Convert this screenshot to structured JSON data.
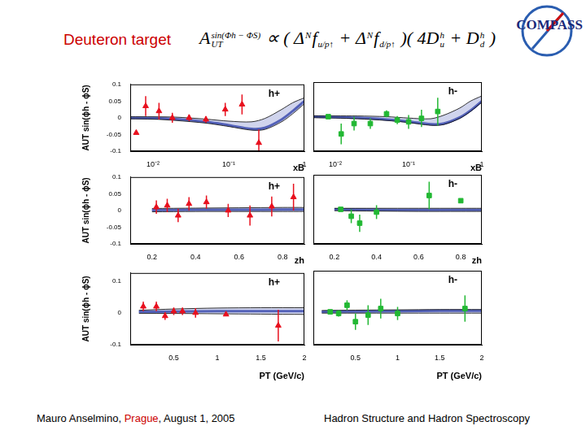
{
  "slide": {
    "title": "Deuteron target",
    "formula": [
      {
        "text": "A",
        "sup": "sin(Φh − ΦS)",
        "sub": "UT"
      },
      {
        "text": " ∝ ( Δ",
        "sup": "N"
      },
      {
        "text": "f",
        "sub": "u/p↑"
      },
      {
        "text": " + Δ",
        "sup": "N"
      },
      {
        "text": "f",
        "sub": "d/p↑"
      },
      {
        "text": " )( 4D",
        "sup": "h",
        "sub": "u"
      },
      {
        "text": " + D",
        "sup": "h",
        "sub": "d"
      },
      {
        "text": " )"
      }
    ],
    "logo": "COMPASS",
    "footer_left": [
      {
        "text": "Mauro Anselmino, "
      },
      {
        "text": "Prague",
        "color": "#cc0000"
      },
      {
        "text": ", August 1, 2005"
      }
    ],
    "footer_right": "Hadron Structure and Hadron Spectroscopy"
  },
  "chart_data": [
    {
      "type": "scatter",
      "title": "h+",
      "x_label": "xB",
      "y_label": "AUT sin(ϕh - ϕS)",
      "log": "x",
      "grid": false,
      "xlim": [
        0.005,
        1
      ],
      "xticks": [
        {
          "value": 0.01,
          "label": "10⁻²"
        },
        {
          "value": 0.1,
          "label": "10⁻¹"
        },
        1
      ],
      "ylim": [
        -0.1,
        0.1
      ],
      "yticks": [
        -0.1,
        -0.05,
        0,
        0.05,
        0.1
      ],
      "series": [
        {
          "type": "scatter",
          "color": "#e8101e",
          "marker": "triangle",
          "x": [
            0.006,
            0.008,
            0.012,
            0.018,
            0.03,
            0.05,
            0.09,
            0.15,
            0.25
          ],
          "values": [
            -0.045,
            0.035,
            0.02,
            0.0,
            0.0,
            -0.005,
            0.025,
            0.04,
            -0.075
          ],
          "errors": [
            null,
            0.03,
            0.025,
            0.015,
            0.01,
            0.01,
            0.02,
            0.03,
            0.04
          ]
        },
        {
          "type": "line",
          "color": "#1c2e9e",
          "x": [
            0.005,
            0.01,
            0.02,
            0.05,
            0.1,
            0.2,
            0.3,
            0.5,
            0.7,
            1
          ],
          "values": [
            0,
            -0.001,
            -0.004,
            -0.012,
            -0.022,
            -0.033,
            -0.03,
            -0.005,
            0.02,
            0.05
          ],
          "band": {
            "lower": [
              -0.003,
              -0.004,
              -0.008,
              -0.016,
              -0.026,
              -0.037,
              -0.035,
              -0.012,
              0.012,
              0.042
            ],
            "upper": [
              0.003,
              0.003,
              0.002,
              -0.004,
              -0.01,
              -0.012,
              -0.002,
              0.025,
              0.045,
              0.06
            ]
          }
        }
      ]
    },
    {
      "type": "scatter",
      "title": "h-",
      "x_label": "xB",
      "log": "x",
      "grid": false,
      "tick_labels": "x",
      "xlim": [
        0.005,
        1
      ],
      "xticks": [
        {
          "value": 0.01,
          "label": "10⁻²"
        },
        {
          "value": 0.1,
          "label": "10⁻¹"
        },
        1
      ],
      "ylim": [
        -0.1,
        0.1
      ],
      "yticks": [
        -0.1,
        -0.05,
        0,
        0.05,
        0.1
      ],
      "series": [
        {
          "type": "scatter",
          "color": "#22b833",
          "marker": "square",
          "x": [
            0.008,
            0.012,
            0.018,
            0.03,
            0.05,
            0.07,
            0.1,
            0.15,
            0.25
          ],
          "values": [
            0.0,
            -0.05,
            -0.02,
            -0.02,
            0.008,
            -0.01,
            -0.015,
            -0.005,
            0.015
          ],
          "errors": [
            null,
            0.03,
            0.02,
            0.015,
            0.01,
            0.012,
            0.02,
            0.025,
            0.04
          ]
        },
        {
          "type": "line",
          "color": "#1c2e9e",
          "x": [
            0.005,
            0.01,
            0.02,
            0.05,
            0.1,
            0.2,
            0.3,
            0.5,
            0.7,
            1
          ],
          "values": [
            0,
            -0.001,
            -0.003,
            -0.008,
            -0.014,
            -0.022,
            -0.02,
            -0.002,
            0.018,
            0.045
          ],
          "band": {
            "lower": [
              -0.003,
              -0.004,
              -0.006,
              -0.011,
              -0.017,
              -0.025,
              -0.023,
              -0.005,
              0.015,
              0.042
            ],
            "upper": [
              0.002,
              0.002,
              0.002,
              0,
              -0.004,
              -0.006,
              0.004,
              0.025,
              0.045,
              0.06
            ]
          }
        }
      ]
    },
    {
      "type": "scatter",
      "title": "h+",
      "x_label": "zh",
      "y_label": "AUT sin(ϕh - ϕS)",
      "grid": false,
      "xlim": [
        0.1,
        0.9
      ],
      "xticks": [
        0.2,
        0.4,
        0.6,
        0.8
      ],
      "ylim": [
        -0.1,
        0.1
      ],
      "yticks": [
        -0.1,
        -0.05,
        0,
        0.05,
        0.1
      ],
      "series": [
        {
          "type": "scatter",
          "color": "#e8101e",
          "marker": "triangle",
          "x": [
            0.22,
            0.27,
            0.32,
            0.37,
            0.45,
            0.55,
            0.65,
            0.75,
            0.85
          ],
          "values": [
            0.01,
            0.015,
            -0.015,
            0.02,
            0.025,
            0.0,
            -0.015,
            0.012,
            0.04
          ],
          "errors": [
            0.02,
            0.02,
            0.02,
            0.02,
            0.02,
            0.02,
            0.03,
            0.03,
            0.04
          ]
        },
        {
          "type": "line",
          "color": "#1c2e9e",
          "x": [
            0.2,
            0.4,
            0.6,
            0.8,
            0.9
          ],
          "values": [
            0.001,
            0.002,
            0.002,
            0.003,
            0.003
          ],
          "band": {
            "lower": [
              -0.004,
              -0.003,
              -0.003,
              -0.003,
              -0.003
            ],
            "upper": [
              0.006,
              0.007,
              0.008,
              0.009,
              0.009
            ]
          }
        }
      ]
    },
    {
      "type": "scatter",
      "title": "h-",
      "x_label": "zh",
      "grid": false,
      "tick_labels": "x",
      "xlim": [
        0.1,
        0.9
      ],
      "xticks": [
        0.2,
        0.4,
        0.6,
        0.8
      ],
      "ylim": [
        -0.1,
        0.1
      ],
      "yticks": [
        -0.1,
        -0.05,
        0,
        0.05,
        0.1
      ],
      "series": [
        {
          "type": "scatter",
          "color": "#22b833",
          "marker": "square",
          "x": [
            0.23,
            0.28,
            0.32,
            0.4,
            0.65,
            0.8
          ],
          "values": [
            0.0,
            -0.02,
            -0.04,
            -0.008,
            0.04,
            0.025
          ],
          "errors": [
            null,
            0.02,
            0.025,
            0.02,
            0.04,
            null
          ]
        },
        {
          "type": "line",
          "color": "#1c2e9e",
          "x": [
            0.2,
            0.4,
            0.6,
            0.8,
            0.9
          ],
          "values": [
            0,
            -0.001,
            -0.002,
            -0.002,
            -0.002
          ],
          "band": {
            "lower": [
              -0.004,
              -0.005,
              -0.006,
              -0.006,
              -0.006
            ],
            "upper": [
              0.003,
              0.003,
              0.003,
              0.003,
              0.003
            ]
          }
        }
      ]
    },
    {
      "type": "scatter",
      "title": "h+",
      "x_label": "PT (GeV/c)",
      "y_label": "AUT sin(ϕh - ϕS)",
      "grid": false,
      "xlim": [
        0,
        2
      ],
      "xticks": [
        0.5,
        1,
        1.5,
        2
      ],
      "ylim": [
        -0.1,
        0.125
      ],
      "yticks": [
        -0.1,
        0,
        0.1
      ],
      "series": [
        {
          "type": "scatter",
          "color": "#e8101e",
          "marker": "triangle",
          "x": [
            0.15,
            0.3,
            0.4,
            0.5,
            0.6,
            0.75,
            1.1,
            1.7
          ],
          "values": [
            0.02,
            0.02,
            -0.01,
            0.005,
            0.005,
            0.0,
            -0.005,
            -0.04
          ],
          "errors": [
            0.015,
            0.015,
            0.012,
            0.012,
            0.012,
            0.015,
            null,
            0.05
          ]
        },
        {
          "type": "line",
          "color": "#1c2e9e",
          "x": [
            0.1,
            0.5,
            1,
            1.5,
            2
          ],
          "values": [
            0.003,
            0.004,
            0.005,
            0.005,
            0.005
          ],
          "band": {
            "lower": [
              -0.002,
              -0.002,
              -0.003,
              -0.004,
              -0.005
            ],
            "upper": [
              0.008,
              0.012,
              0.015,
              0.016,
              0.016
            ]
          }
        }
      ]
    },
    {
      "type": "scatter",
      "title": "h-",
      "x_label": "PT (GeV/c)",
      "grid": false,
      "tick_labels": "x",
      "xlim": [
        0,
        2
      ],
      "xticks": [
        0.5,
        1,
        1.5,
        2
      ],
      "ylim": [
        -0.1,
        0.125
      ],
      "yticks": [
        -0.1,
        0,
        0.1
      ],
      "series": [
        {
          "type": "scatter",
          "color": "#22b833",
          "marker": "square",
          "x": [
            0.2,
            0.3,
            0.4,
            0.5,
            0.65,
            0.8,
            1.0,
            1.8
          ],
          "values": [
            0.0,
            -0.005,
            0.02,
            -0.03,
            -0.01,
            0.01,
            -0.005,
            0.01
          ],
          "errors": [
            null,
            0.01,
            0.015,
            0.025,
            0.03,
            0.03,
            0.02,
            0.04
          ]
        },
        {
          "type": "line",
          "color": "#1c2e9e",
          "x": [
            0.1,
            0.5,
            1,
            1.5,
            2
          ],
          "values": [
            0,
            0.001,
            0.002,
            0.003,
            0.003
          ],
          "band": {
            "lower": [
              -0.004,
              -0.004,
              -0.004,
              -0.004,
              -0.004
            ],
            "upper": [
              0.004,
              0.005,
              0.006,
              0.007,
              0.007
            ]
          }
        }
      ]
    }
  ]
}
